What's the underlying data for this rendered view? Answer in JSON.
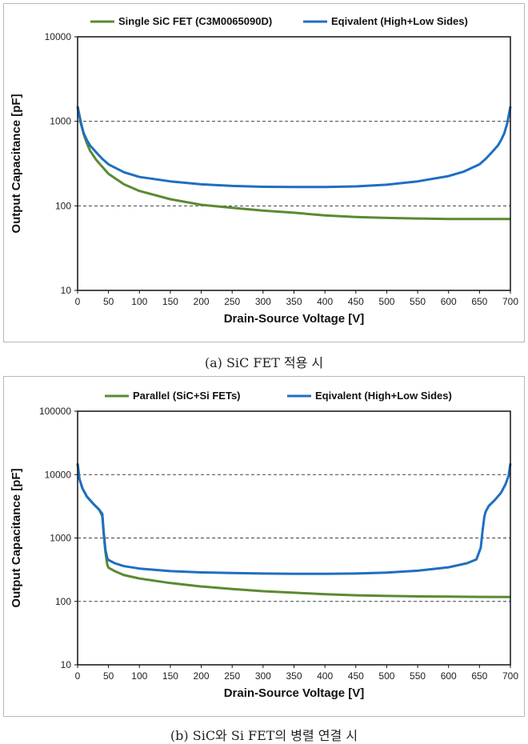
{
  "chart_data": [
    {
      "type": "line",
      "xlabel": "Drain-Source Voltage [V]",
      "ylabel": "Output Capacitance  [pF]",
      "xlim": [
        0,
        700
      ],
      "ylim": [
        10,
        10000
      ],
      "yscale": "log",
      "x_ticks": [
        "0",
        "50",
        "100",
        "150",
        "200",
        "250",
        "300",
        "350",
        "400",
        "450",
        "500",
        "550",
        "600",
        "650",
        "700"
      ],
      "y_ticks": [
        "10",
        "100",
        "1000",
        "10000"
      ],
      "grid": "dashed horizontal at 100 and 1000",
      "legend_position": "top",
      "series": [
        {
          "name": "Single SiC FET (C3M0065090D)",
          "color": "#5a8a32",
          "x": [
            0,
            5,
            10,
            15,
            20,
            30,
            40,
            50,
            75,
            100,
            150,
            200,
            250,
            300,
            350,
            400,
            450,
            500,
            550,
            600,
            650,
            700
          ],
          "y": [
            1500,
            1000,
            700,
            550,
            450,
            350,
            290,
            240,
            180,
            150,
            120,
            103,
            95,
            88,
            83,
            77,
            74,
            72,
            71,
            70,
            70,
            70
          ]
        },
        {
          "name": "Eqivalent (High+Low Sides)",
          "color": "#1f6fc0",
          "x": [
            0,
            5,
            10,
            15,
            20,
            30,
            40,
            50,
            75,
            100,
            150,
            200,
            250,
            300,
            350,
            400,
            450,
            500,
            550,
            600,
            625,
            650,
            660,
            670,
            680,
            685,
            690,
            695,
            700
          ],
          "y": [
            1500,
            950,
            720,
            600,
            520,
            430,
            360,
            310,
            250,
            220,
            195,
            180,
            172,
            168,
            167,
            167,
            170,
            178,
            195,
            225,
            255,
            310,
            360,
            430,
            520,
            600,
            720,
            950,
            1500
          ]
        }
      ]
    },
    {
      "type": "line",
      "xlabel": "Drain-Source Voltage [V]",
      "ylabel": "Output Capacitance  [pF]",
      "xlim": [
        0,
        700
      ],
      "ylim": [
        10,
        100000
      ],
      "yscale": "log",
      "x_ticks": [
        "0",
        "50",
        "100",
        "150",
        "200",
        "250",
        "300",
        "350",
        "400",
        "450",
        "500",
        "550",
        "600",
        "650",
        "700"
      ],
      "y_ticks": [
        "10",
        "100",
        "1000",
        "10000",
        "100000"
      ],
      "grid": "dashed horizontal at 100, 1000 and 10000",
      "legend_position": "top",
      "series": [
        {
          "name": "Parallel (SiC+Si FETs)",
          "color": "#5a8a32",
          "x": [
            0,
            3,
            8,
            15,
            25,
            35,
            40,
            42,
            45,
            48,
            50,
            60,
            75,
            100,
            150,
            200,
            250,
            300,
            350,
            400,
            450,
            500,
            550,
            600,
            650,
            700
          ],
          "y": [
            15000,
            8500,
            6000,
            4500,
            3500,
            2800,
            2200,
            1200,
            600,
            380,
            340,
            300,
            260,
            230,
            195,
            172,
            157,
            145,
            137,
            130,
            125,
            122,
            120,
            119,
            118,
            117
          ]
        },
        {
          "name": "Eqivalent (High+Low Sides)",
          "color": "#1f6fc0",
          "x": [
            0,
            3,
            8,
            15,
            25,
            35,
            40,
            42,
            45,
            48,
            50,
            60,
            75,
            100,
            150,
            200,
            250,
            300,
            350,
            400,
            450,
            500,
            550,
            600,
            630,
            645,
            652,
            655,
            658,
            660,
            665,
            675,
            685,
            692,
            697,
            700
          ],
          "y": [
            15000,
            8500,
            6000,
            4500,
            3500,
            2800,
            2400,
            1300,
            650,
            480,
            450,
            400,
            360,
            330,
            300,
            287,
            280,
            275,
            273,
            272,
            275,
            285,
            305,
            345,
            400,
            460,
            700,
            1300,
            2200,
            2600,
            3200,
            4000,
            5200,
            7000,
            9500,
            15000
          ]
        }
      ]
    }
  ],
  "captions": {
    "a": "(a) SiC FET 적용 시",
    "b": "(b) SiC와 Si FET의 병렬 연결 시"
  }
}
